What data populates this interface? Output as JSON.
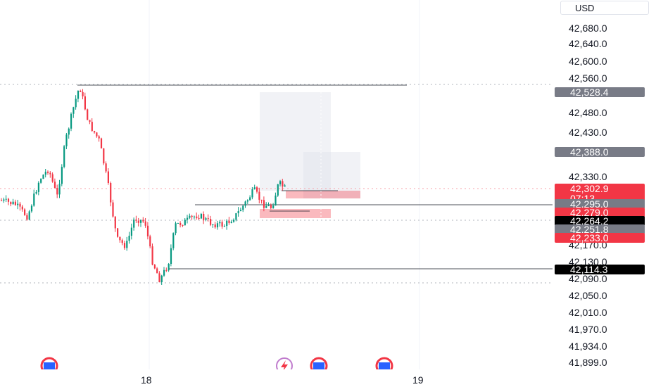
{
  "chart_data": {
    "type": "candlestick",
    "currency": "USD",
    "y_ticks": [
      "42,680.0",
      "42,640.0",
      "42,600.0",
      "42,560.0",
      "42,480.0",
      "42,430.0",
      "42,330.0",
      "42,170.0",
      "42,130.0",
      "42,090.0",
      "42,050.0",
      "42,010.0",
      "41,970.0",
      "41,934.0",
      "41,899.0"
    ],
    "y_tick_values": [
      42680,
      42640,
      42600,
      42560,
      42480,
      42430,
      42330,
      42170,
      42130,
      42090,
      42050,
      42010,
      41970,
      41934,
      41899
    ],
    "x_ticks": [
      {
        "label": "18"
      },
      {
        "label": "19"
      }
    ],
    "price_labels": [
      {
        "text": "42,528.4",
        "value": 42528.4,
        "color": "#787b86"
      },
      {
        "text": "42,388.0",
        "value": 42388.0,
        "color": "#787b86"
      },
      {
        "text": "42,302.9",
        "sub": "07:13",
        "value": 42302.9,
        "color": "#f23645"
      },
      {
        "text": "42,295.0",
        "value": 42295.0,
        "color": "#787b86"
      },
      {
        "text": "42,279.0",
        "value": 42279.0,
        "color": "#f23645"
      },
      {
        "text": "42,264.2",
        "value": 42264.2,
        "color": "#000000"
      },
      {
        "text": "42,251.8",
        "value": 42251.8,
        "color": "#787b86"
      },
      {
        "text": "42,233.0",
        "value": 42233.0,
        "color": "#f23645"
      },
      {
        "text": "42,114.3",
        "value": 42114.3,
        "color": "#000000"
      }
    ],
    "colors": {
      "up": "#089981",
      "down": "#f23645",
      "grid": "#f0f3fa"
    }
  }
}
